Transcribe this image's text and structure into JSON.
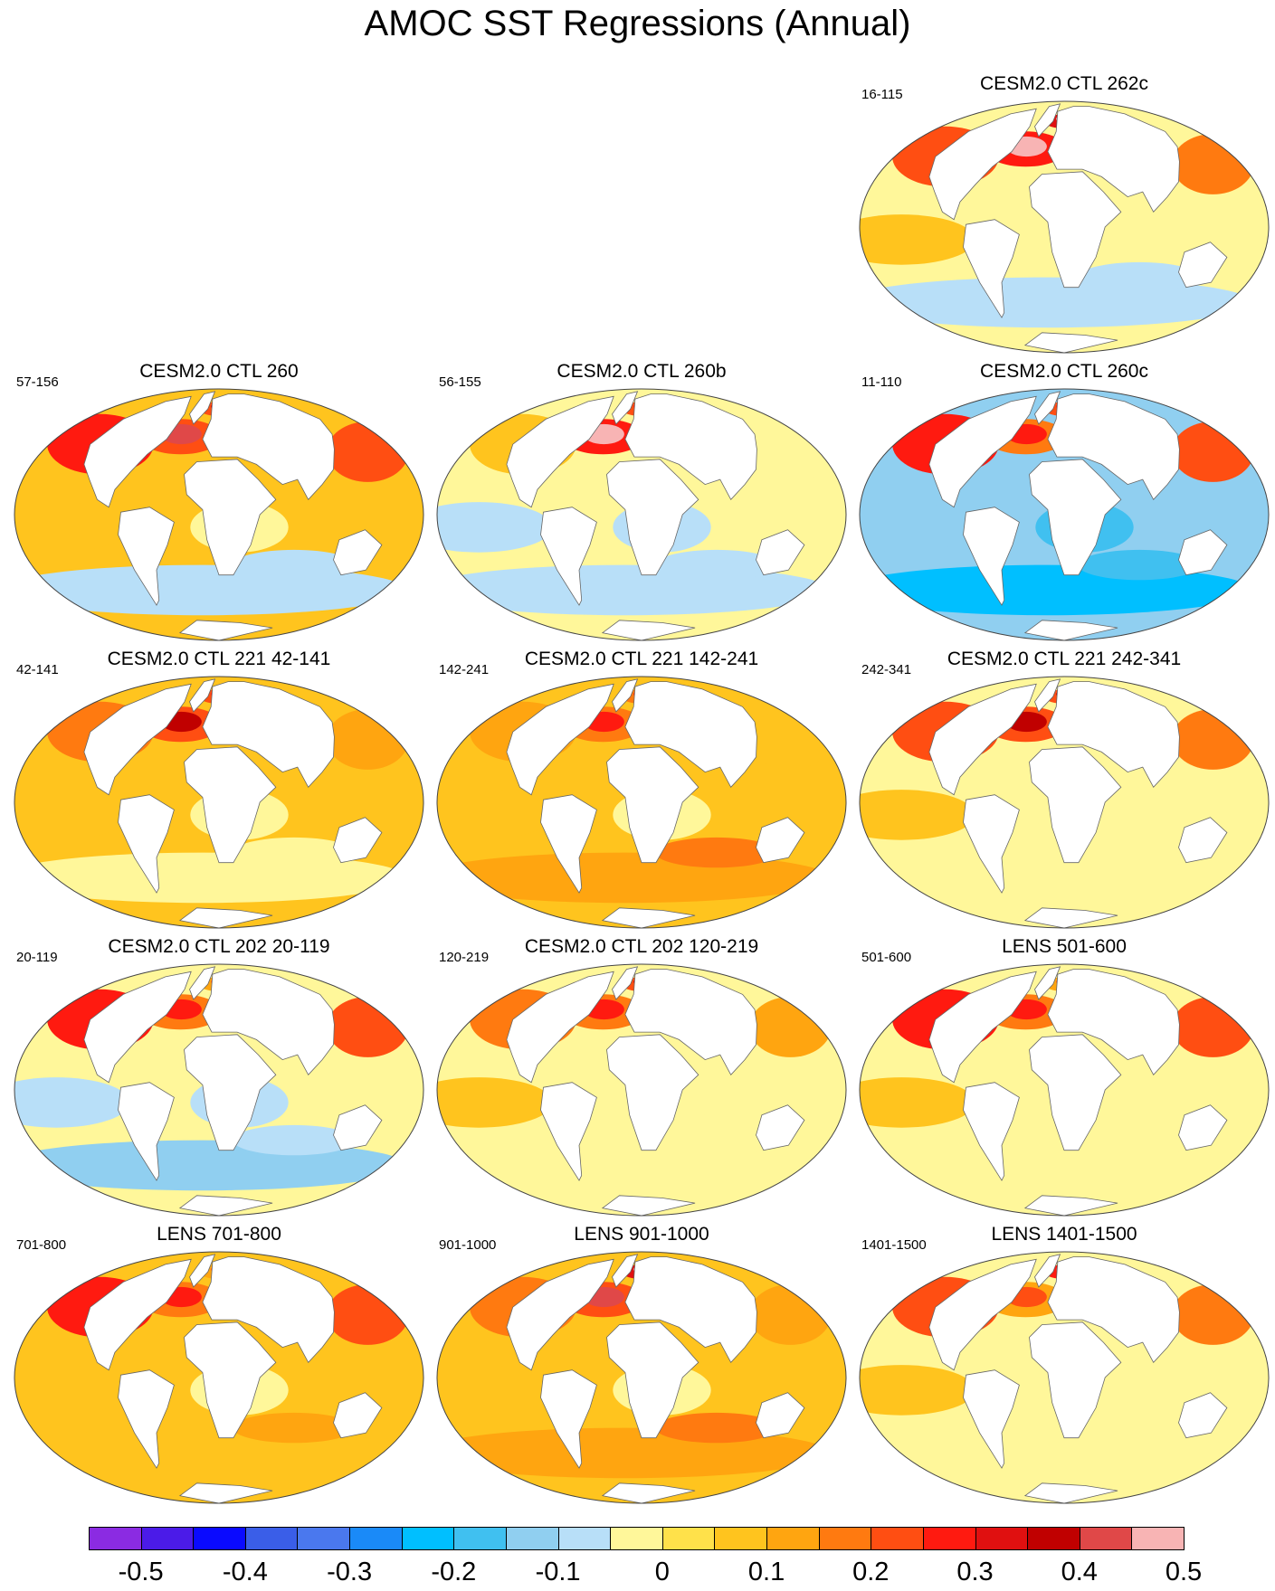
{
  "title": "AMOC SST Regressions (Annual)",
  "panels": [
    {
      "title": "CESM2.0 CTL 262c",
      "years": "16-115",
      "pattern": "mixed",
      "na": 0.45,
      "nordic": 0.45,
      "npac": 0.2,
      "south": -0.1
    },
    {
      "title": "CESM2.0 CTL 260",
      "years": "57-156",
      "pattern": "warm",
      "na": 0.4,
      "nordic": 0.35,
      "npac": 0.25,
      "south": -0.1
    },
    {
      "title": "CESM2.0 CTL 260b",
      "years": "56-155",
      "pattern": "cool",
      "na": 0.45,
      "nordic": 0.3,
      "npac": 0.05,
      "south": -0.1
    },
    {
      "title": "CESM2.0 CTL 260c",
      "years": "11-110",
      "pattern": "cold",
      "na": 0.3,
      "nordic": 0.3,
      "npac": 0.25,
      "south": -0.25
    },
    {
      "title": "CESM2.0 CTL 221 42-141",
      "years": "42-141",
      "pattern": "warm",
      "na": 0.35,
      "nordic": 0.3,
      "npac": 0.15,
      "south": -0.05
    },
    {
      "title": "CESM2.0 CTL 221 142-241",
      "years": "142-241",
      "pattern": "warm",
      "na": 0.3,
      "nordic": 0.25,
      "npac": 0.1,
      "south": 0.1
    },
    {
      "title": "CESM2.0 CTL 221 242-341",
      "years": "242-341",
      "pattern": "mixed",
      "na": 0.35,
      "nordic": 0.35,
      "npac": 0.2,
      "south": -0.05
    },
    {
      "title": "CESM2.0 CTL 202 20-119",
      "years": "20-119",
      "pattern": "cool",
      "na": 0.25,
      "nordic": 0.2,
      "npac": 0.25,
      "south": -0.15
    },
    {
      "title": "CESM2.0 CTL 202 120-219",
      "years": "120-219",
      "pattern": "mixed",
      "na": 0.25,
      "nordic": 0.35,
      "npac": 0.15,
      "south": -0.05
    },
    {
      "title": "LENS 501-600",
      "years": "501-600",
      "pattern": "mixed",
      "na": 0.3,
      "nordic": 0.2,
      "npac": 0.25,
      "south": -0.05
    },
    {
      "title": "LENS 701-800",
      "years": "701-800",
      "pattern": "warm",
      "na": 0.25,
      "nordic": 0.2,
      "npac": 0.3,
      "south": 0.05
    },
    {
      "title": "LENS 901-1000",
      "years": "901-1000",
      "pattern": "warm",
      "na": 0.4,
      "nordic": 0.45,
      "npac": 0.15,
      "south": 0.1
    },
    {
      "title": "LENS 1401-1500",
      "years": "1401-1500",
      "pattern": "mixed",
      "na": 0.2,
      "nordic": 0.4,
      "npac": 0.2,
      "south": -0.05
    }
  ],
  "colorbar": {
    "colors": [
      "#8b2be2",
      "#4b1be8",
      "#0a0aff",
      "#3a5ee8",
      "#4a78ee",
      "#1a8af8",
      "#00bfff",
      "#40c0f0",
      "#90cff0",
      "#b8dff8",
      "#fff79a",
      "#ffe14a",
      "#ffc41e",
      "#ffa510",
      "#ff7a10",
      "#ff4e12",
      "#ff1a10",
      "#e01010",
      "#c00000",
      "#e04848",
      "#f8b4b4"
    ],
    "labels": [
      "-0.5",
      "-0.4",
      "-0.3",
      "-0.2",
      "-0.1",
      "0",
      "0.1",
      "0.2",
      "0.3",
      "0.4",
      "0.5"
    ]
  }
}
